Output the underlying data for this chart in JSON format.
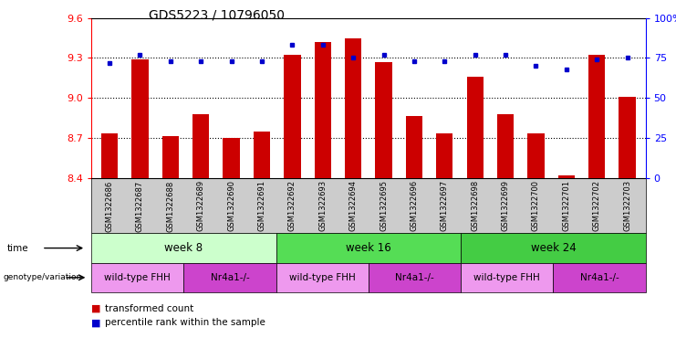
{
  "title": "GDS5223 / 10796050",
  "samples": [
    "GSM1322686",
    "GSM1322687",
    "GSM1322688",
    "GSM1322689",
    "GSM1322690",
    "GSM1322691",
    "GSM1322692",
    "GSM1322693",
    "GSM1322694",
    "GSM1322695",
    "GSM1322696",
    "GSM1322697",
    "GSM1322698",
    "GSM1322699",
    "GSM1322700",
    "GSM1322701",
    "GSM1322702",
    "GSM1322703"
  ],
  "transformed_count": [
    8.73,
    9.29,
    8.71,
    8.88,
    8.7,
    8.75,
    9.32,
    9.42,
    9.45,
    9.27,
    8.86,
    8.73,
    9.16,
    8.88,
    8.73,
    8.42,
    9.32,
    9.01
  ],
  "percentile_rank": [
    72,
    77,
    73,
    73,
    73,
    73,
    83,
    83,
    75,
    77,
    73,
    73,
    77,
    77,
    70,
    68,
    74,
    75
  ],
  "ylim_left": [
    8.4,
    9.6
  ],
  "ylim_right": [
    0,
    100
  ],
  "yticks_left": [
    8.4,
    8.7,
    9.0,
    9.3,
    9.6
  ],
  "yticks_right": [
    0,
    25,
    50,
    75,
    100
  ],
  "hlines": [
    8.7,
    9.0,
    9.3
  ],
  "bar_color": "#cc0000",
  "dot_color": "#0000cc",
  "time_groups": [
    {
      "label": "week 8",
      "start": 0,
      "end": 5,
      "color": "#ccffcc"
    },
    {
      "label": "week 16",
      "start": 6,
      "end": 11,
      "color": "#55dd55"
    },
    {
      "label": "week 24",
      "start": 12,
      "end": 17,
      "color": "#44cc44"
    }
  ],
  "genotype_groups": [
    {
      "label": "wild-type FHH",
      "start": 0,
      "end": 2,
      "color": "#ee99ee"
    },
    {
      "label": "Nr4a1-/-",
      "start": 3,
      "end": 5,
      "color": "#cc44cc"
    },
    {
      "label": "wild-type FHH",
      "start": 6,
      "end": 8,
      "color": "#ee99ee"
    },
    {
      "label": "Nr4a1-/-",
      "start": 9,
      "end": 11,
      "color": "#cc44cc"
    },
    {
      "label": "wild-type FHH",
      "start": 12,
      "end": 14,
      "color": "#ee99ee"
    },
    {
      "label": "Nr4a1-/-",
      "start": 15,
      "end": 17,
      "color": "#cc44cc"
    }
  ],
  "label_time": "time",
  "label_genotype": "genotype/variation",
  "legend_bar": "transformed count",
  "legend_dot": "percentile rank within the sample",
  "tick_bg_color": "#cccccc",
  "fig_width": 7.41,
  "fig_height": 3.93,
  "dpi": 100
}
